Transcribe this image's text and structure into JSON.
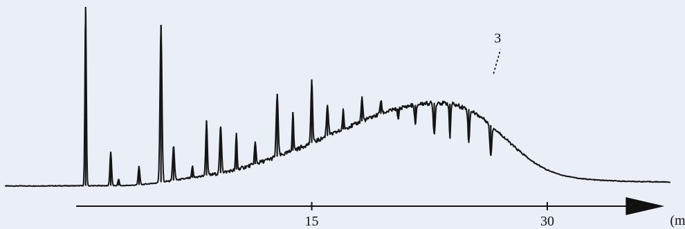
{
  "colors": {
    "background": "#e9eef7",
    "trace": "#151515",
    "axis": "#111111"
  },
  "chart_data": {
    "type": "line",
    "title": "",
    "xlabel": "",
    "ylabel": "",
    "x_unit_label": "(min.)",
    "xlim": [
      -4.5,
      37.8
    ],
    "ylim": [
      0,
      100
    ],
    "x_ticks": [
      {
        "value": 15,
        "label": "15"
      },
      {
        "value": 30,
        "label": "30"
      }
    ],
    "annotations": [
      {
        "text": "3",
        "x": 26.4,
        "y": 62
      }
    ],
    "baseline_points": [
      [
        -4.5,
        1.2
      ],
      [
        3.0,
        1.4
      ],
      [
        4.0,
        1.8
      ],
      [
        5.0,
        2.8
      ],
      [
        6.0,
        4.0
      ],
      [
        7.0,
        5.2
      ],
      [
        8.0,
        6.6
      ],
      [
        9.0,
        8.0
      ],
      [
        10.0,
        9.8
      ],
      [
        11.0,
        12.2
      ],
      [
        12.0,
        15.0
      ],
      [
        13.0,
        18.0
      ],
      [
        14.0,
        21.4
      ],
      [
        15.0,
        25.0
      ],
      [
        16.0,
        28.8
      ],
      [
        17.0,
        32.4
      ],
      [
        18.0,
        36.2
      ],
      [
        19.0,
        39.8
      ],
      [
        20.0,
        42.8
      ],
      [
        21.0,
        45.0
      ],
      [
        22.0,
        46.6
      ],
      [
        23.0,
        47.2
      ],
      [
        24.0,
        46.4
      ],
      [
        25.0,
        43.6
      ],
      [
        26.0,
        38.0
      ],
      [
        27.0,
        30.0
      ],
      [
        28.0,
        22.0
      ],
      [
        29.0,
        15.0
      ],
      [
        30.0,
        10.0
      ],
      [
        31.0,
        7.0
      ],
      [
        32.0,
        5.4
      ],
      [
        33.0,
        4.6
      ],
      [
        34.0,
        4.1
      ],
      [
        35.0,
        3.8
      ],
      [
        36.0,
        3.6
      ],
      [
        37.8,
        3.4
      ]
    ],
    "peaks": [
      {
        "x": 0.6,
        "height": 100
      },
      {
        "x": 2.2,
        "height": 20
      },
      {
        "x": 5.4,
        "height": 90
      },
      {
        "x": 2.7,
        "height": 5
      },
      {
        "x": 4.0,
        "height": 12
      },
      {
        "x": 6.2,
        "height": 23
      },
      {
        "x": 7.4,
        "height": 12
      },
      {
        "x": 8.3,
        "height": 37
      },
      {
        "x": 9.2,
        "height": 34
      },
      {
        "x": 10.2,
        "height": 30
      },
      {
        "x": 11.4,
        "height": 25
      },
      {
        "x": 12.8,
        "height": 52
      },
      {
        "x": 13.8,
        "height": 42
      },
      {
        "x": 15.0,
        "height": 60
      },
      {
        "x": 16.0,
        "height": 46
      },
      {
        "x": 17.0,
        "height": 43
      },
      {
        "x": 18.2,
        "height": 50
      },
      {
        "x": 19.4,
        "height": 48
      },
      {
        "x": 20.5,
        "height": 38
      },
      {
        "x": 21.6,
        "height": 35
      },
      {
        "x": 22.8,
        "height": 30
      },
      {
        "x": 23.8,
        "height": 28
      },
      {
        "x": 25.0,
        "height": 25
      },
      {
        "x": 26.4,
        "height": 18
      }
    ]
  }
}
